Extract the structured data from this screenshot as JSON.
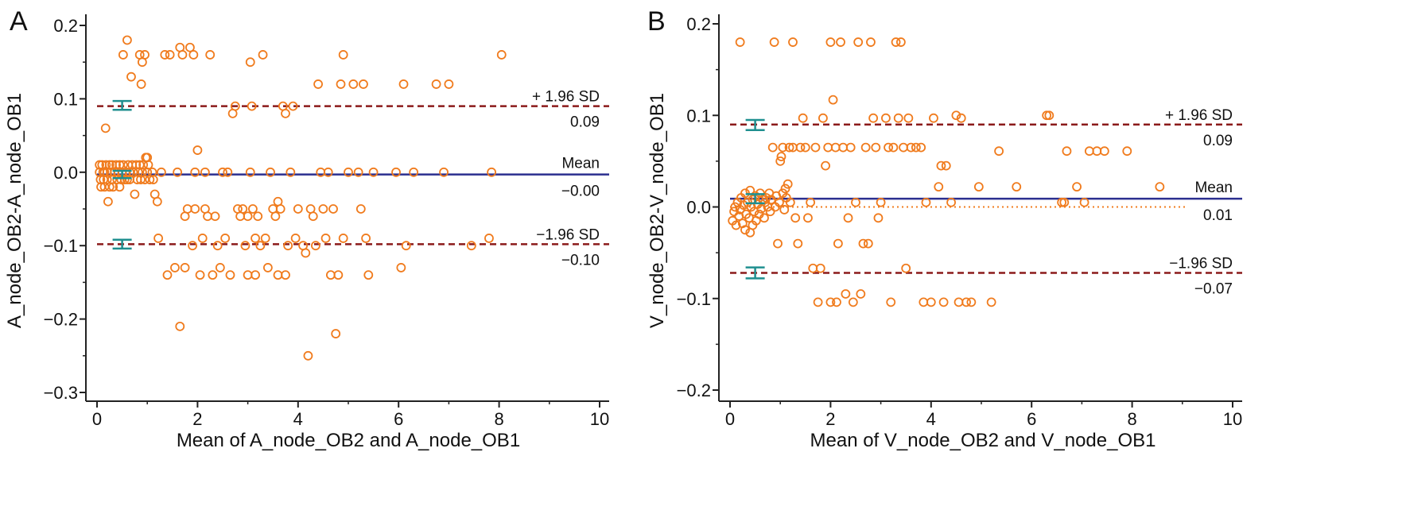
{
  "colors": {
    "axis": "#222222",
    "points": "#f07b1d",
    "mean_line": "#2b2f8f",
    "sd_line": "#8b1a1a",
    "ci_bars": "#1f8f8f",
    "zero_line": "#f07b1d"
  },
  "chart_data": [
    {
      "type": "scatter",
      "panel_label": "A",
      "xlabel": "Mean of A_node_OB2 and A_node_OB1",
      "ylabel": "A_node_OB2-A_node_OB1",
      "xlim": [
        0,
        10
      ],
      "ylim": [
        -0.3,
        0.2
      ],
      "xticks": [
        0,
        2,
        4,
        6,
        8,
        10
      ],
      "yticks": [
        -0.3,
        -0.2,
        -0.1,
        0.0,
        0.1,
        0.2
      ],
      "ytick_labels": [
        "−0.3",
        "−0.2",
        "−0.1",
        "0.0",
        "0.1",
        "0.2"
      ],
      "grid": false,
      "lines": {
        "upper": {
          "value": 0.09,
          "label": "+ 1.96 SD",
          "value_label": "0.09"
        },
        "mean": {
          "value": -0.003,
          "label": "Mean",
          "value_label": "−0.00"
        },
        "lower": {
          "value": -0.098,
          "label": "−1.96 SD",
          "value_label": "−0.10"
        }
      },
      "ci_bars": [
        {
          "x": 0.5,
          "low": 0.085,
          "high": 0.097
        },
        {
          "x": 0.5,
          "low": -0.008,
          "high": 0.002
        },
        {
          "x": 0.5,
          "low": -0.104,
          "high": -0.092
        }
      ],
      "points": [
        [
          0.05,
          0.01
        ],
        [
          0.05,
          0.0
        ],
        [
          0.07,
          -0.01
        ],
        [
          0.08,
          -0.02
        ],
        [
          0.1,
          0.01
        ],
        [
          0.12,
          0.0
        ],
        [
          0.13,
          -0.01
        ],
        [
          0.15,
          0.0
        ],
        [
          0.15,
          -0.02
        ],
        [
          0.17,
          0.06
        ],
        [
          0.18,
          0.01
        ],
        [
          0.2,
          -0.01
        ],
        [
          0.2,
          0.0
        ],
        [
          0.22,
          -0.04
        ],
        [
          0.25,
          0.01
        ],
        [
          0.25,
          -0.02
        ],
        [
          0.27,
          0.0
        ],
        [
          0.3,
          0.01
        ],
        [
          0.3,
          -0.01
        ],
        [
          0.32,
          -0.02
        ],
        [
          0.35,
          0.0
        ],
        [
          0.38,
          0.01
        ],
        [
          0.4,
          -0.01
        ],
        [
          0.42,
          0.0
        ],
        [
          0.45,
          -0.02
        ],
        [
          0.45,
          0.01
        ],
        [
          0.48,
          -0.01
        ],
        [
          0.5,
          0.0
        ],
        [
          0.52,
          0.16
        ],
        [
          0.52,
          0.01
        ],
        [
          0.55,
          -0.01
        ],
        [
          0.58,
          0.0
        ],
        [
          0.6,
          0.18
        ],
        [
          0.6,
          -0.01
        ],
        [
          0.62,
          0.01
        ],
        [
          0.65,
          0.0
        ],
        [
          0.65,
          -0.01
        ],
        [
          0.68,
          0.13
        ],
        [
          0.7,
          0.01
        ],
        [
          0.72,
          0.0
        ],
        [
          0.75,
          -0.03
        ],
        [
          0.78,
          0.01
        ],
        [
          0.8,
          -0.01
        ],
        [
          0.82,
          0.0
        ],
        [
          0.85,
          0.16
        ],
        [
          0.85,
          0.01
        ],
        [
          0.87,
          -0.01
        ],
        [
          0.88,
          0.12
        ],
        [
          0.9,
          0.15
        ],
        [
          0.9,
          0.0
        ],
        [
          0.92,
          0.01
        ],
        [
          0.95,
          0.16
        ],
        [
          0.95,
          -0.01
        ],
        [
          0.97,
          0.02
        ],
        [
          1.0,
          0.0
        ],
        [
          1.0,
          0.02
        ],
        [
          1.02,
          0.01
        ],
        [
          1.05,
          -0.01
        ],
        [
          1.1,
          0.0
        ],
        [
          1.12,
          -0.01
        ],
        [
          1.15,
          -0.03
        ],
        [
          1.2,
          -0.04
        ],
        [
          1.22,
          -0.09
        ],
        [
          1.28,
          0.0
        ],
        [
          1.35,
          0.16
        ],
        [
          1.4,
          -0.14
        ],
        [
          1.45,
          0.16
        ],
        [
          1.55,
          -0.13
        ],
        [
          1.6,
          0.0
        ],
        [
          1.65,
          0.17
        ],
        [
          1.65,
          -0.21
        ],
        [
          1.7,
          0.16
        ],
        [
          1.75,
          -0.06
        ],
        [
          1.75,
          -0.13
        ],
        [
          1.8,
          -0.05
        ],
        [
          1.85,
          0.17
        ],
        [
          1.9,
          -0.1
        ],
        [
          1.92,
          0.16
        ],
        [
          1.95,
          0.0
        ],
        [
          1.95,
          -0.05
        ],
        [
          2.0,
          0.03
        ],
        [
          2.05,
          -0.14
        ],
        [
          2.1,
          -0.09
        ],
        [
          2.15,
          0.0
        ],
        [
          2.15,
          -0.05
        ],
        [
          2.2,
          -0.06
        ],
        [
          2.25,
          0.16
        ],
        [
          2.3,
          -0.14
        ],
        [
          2.35,
          -0.06
        ],
        [
          2.4,
          -0.1
        ],
        [
          2.45,
          -0.13
        ],
        [
          2.5,
          0.0
        ],
        [
          2.55,
          -0.09
        ],
        [
          2.6,
          0.0
        ],
        [
          2.65,
          -0.14
        ],
        [
          2.7,
          0.08
        ],
        [
          2.75,
          0.09
        ],
        [
          2.8,
          -0.05
        ],
        [
          2.85,
          -0.06
        ],
        [
          2.9,
          -0.05
        ],
        [
          2.95,
          -0.1
        ],
        [
          3.0,
          -0.06
        ],
        [
          3.0,
          -0.14
        ],
        [
          3.05,
          0.0
        ],
        [
          3.05,
          0.15
        ],
        [
          3.08,
          0.09
        ],
        [
          3.1,
          -0.05
        ],
        [
          3.15,
          -0.09
        ],
        [
          3.15,
          -0.14
        ],
        [
          3.2,
          -0.06
        ],
        [
          3.25,
          -0.1
        ],
        [
          3.3,
          0.16
        ],
        [
          3.35,
          -0.09
        ],
        [
          3.4,
          -0.13
        ],
        [
          3.45,
          0.0
        ],
        [
          3.5,
          -0.05
        ],
        [
          3.55,
          -0.06
        ],
        [
          3.6,
          -0.04
        ],
        [
          3.6,
          -0.14
        ],
        [
          3.65,
          -0.05
        ],
        [
          3.7,
          0.09
        ],
        [
          3.75,
          0.08
        ],
        [
          3.75,
          -0.14
        ],
        [
          3.8,
          -0.1
        ],
        [
          3.85,
          0.0
        ],
        [
          3.9,
          0.09
        ],
        [
          3.95,
          -0.09
        ],
        [
          4.0,
          -0.05
        ],
        [
          4.1,
          -0.1
        ],
        [
          4.15,
          -0.11
        ],
        [
          4.2,
          -0.25
        ],
        [
          4.25,
          -0.05
        ],
        [
          4.3,
          -0.06
        ],
        [
          4.35,
          -0.1
        ],
        [
          4.4,
          0.12
        ],
        [
          4.45,
          0.0
        ],
        [
          4.5,
          -0.05
        ],
        [
          4.55,
          -0.09
        ],
        [
          4.6,
          0.0
        ],
        [
          4.65,
          -0.14
        ],
        [
          4.7,
          -0.05
        ],
        [
          4.75,
          -0.22
        ],
        [
          4.8,
          -0.14
        ],
        [
          4.85,
          0.12
        ],
        [
          4.9,
          0.16
        ],
        [
          4.9,
          -0.09
        ],
        [
          5.0,
          0.0
        ],
        [
          5.1,
          0.12
        ],
        [
          5.2,
          0.0
        ],
        [
          5.25,
          -0.05
        ],
        [
          5.3,
          0.12
        ],
        [
          5.35,
          -0.09
        ],
        [
          5.4,
          -0.14
        ],
        [
          5.5,
          0.0
        ],
        [
          5.95,
          0.0
        ],
        [
          6.05,
          -0.13
        ],
        [
          6.1,
          0.12
        ],
        [
          6.15,
          -0.1
        ],
        [
          6.3,
          0.0
        ],
        [
          6.75,
          0.12
        ],
        [
          6.9,
          0.0
        ],
        [
          7.0,
          0.12
        ],
        [
          7.45,
          -0.1
        ],
        [
          7.8,
          -0.09
        ],
        [
          7.85,
          0.0
        ],
        [
          8.05,
          0.16
        ]
      ]
    },
    {
      "type": "scatter",
      "panel_label": "B",
      "xlabel": "Mean of V_node_OB2 and V_node_OB1",
      "ylabel": "V_node_OB2-V_node_OB1",
      "xlim": [
        0,
        10
      ],
      "ylim": [
        -0.2,
        0.2
      ],
      "xticks": [
        0,
        2,
        4,
        6,
        8,
        10
      ],
      "yticks": [
        -0.2,
        -0.1,
        0.0,
        0.1,
        0.2
      ],
      "ytick_labels": [
        "−0.2",
        "−0.1",
        "0.0",
        "0.1",
        "0.2"
      ],
      "grid": false,
      "lines": {
        "upper": {
          "value": 0.09,
          "label": "+ 1.96 SD",
          "value_label": "0.09"
        },
        "mean": {
          "value": 0.009,
          "label": "Mean",
          "value_label": "0.01"
        },
        "lower": {
          "value": -0.072,
          "label": "−1.96 SD",
          "value_label": "−0.07"
        }
      },
      "zero_line": {
        "value": 0.0,
        "x_end": 9.1
      },
      "ci_bars": [
        {
          "x": 0.5,
          "low": 0.084,
          "high": 0.095
        },
        {
          "x": 0.5,
          "low": 0.004,
          "high": 0.014
        },
        {
          "x": 0.5,
          "low": -0.078,
          "high": -0.066
        }
      ],
      "points": [
        [
          0.05,
          -0.015
        ],
        [
          0.08,
          -0.005
        ],
        [
          0.1,
          0.0
        ],
        [
          0.12,
          -0.02
        ],
        [
          0.15,
          0.005
        ],
        [
          0.18,
          -0.01
        ],
        [
          0.2,
          0.18
        ],
        [
          0.2,
          -0.003
        ],
        [
          0.22,
          0.01
        ],
        [
          0.25,
          -0.018
        ],
        [
          0.27,
          0.002
        ],
        [
          0.3,
          -0.025
        ],
        [
          0.3,
          0.015
        ],
        [
          0.32,
          -0.008
        ],
        [
          0.35,
          0.005
        ],
        [
          0.38,
          -0.012
        ],
        [
          0.4,
          -0.028
        ],
        [
          0.4,
          0.018
        ],
        [
          0.42,
          0.0
        ],
        [
          0.45,
          -0.02
        ],
        [
          0.45,
          0.008
        ],
        [
          0.48,
          -0.005
        ],
        [
          0.5,
          0.012
        ],
        [
          0.52,
          -0.015
        ],
        [
          0.55,
          0.003
        ],
        [
          0.58,
          -0.008
        ],
        [
          0.6,
          0.015
        ],
        [
          0.62,
          -0.002
        ],
        [
          0.65,
          0.008
        ],
        [
          0.68,
          -0.012
        ],
        [
          0.7,
          0.005
        ],
        [
          0.72,
          0.01
        ],
        [
          0.75,
          0.0
        ],
        [
          0.78,
          0.015
        ],
        [
          0.8,
          -0.005
        ],
        [
          0.82,
          0.008
        ],
        [
          0.85,
          0.065
        ],
        [
          0.88,
          0.18
        ],
        [
          0.9,
          0.0
        ],
        [
          0.92,
          0.012
        ],
        [
          0.95,
          -0.04
        ],
        [
          0.98,
          0.005
        ],
        [
          1.0,
          0.05
        ],
        [
          1.02,
          0.055
        ],
        [
          1.05,
          0.015
        ],
        [
          1.05,
          0.065
        ],
        [
          1.08,
          -0.003
        ],
        [
          1.1,
          0.02
        ],
        [
          1.12,
          0.01
        ],
        [
          1.15,
          0.025
        ],
        [
          1.18,
          0.065
        ],
        [
          1.2,
          0.005
        ],
        [
          1.25,
          0.065
        ],
        [
          1.25,
          0.18
        ],
        [
          1.3,
          -0.012
        ],
        [
          1.35,
          -0.04
        ],
        [
          1.4,
          0.065
        ],
        [
          1.45,
          0.097
        ],
        [
          1.5,
          0.065
        ],
        [
          1.55,
          -0.012
        ],
        [
          1.6,
          0.005
        ],
        [
          1.65,
          -0.067
        ],
        [
          1.7,
          0.065
        ],
        [
          1.75,
          -0.104
        ],
        [
          1.8,
          -0.067
        ],
        [
          1.85,
          0.097
        ],
        [
          1.9,
          0.045
        ],
        [
          1.95,
          0.065
        ],
        [
          2.0,
          0.18
        ],
        [
          2.0,
          -0.104
        ],
        [
          2.05,
          0.117
        ],
        [
          2.1,
          0.065
        ],
        [
          2.12,
          -0.104
        ],
        [
          2.15,
          -0.04
        ],
        [
          2.2,
          0.18
        ],
        [
          2.25,
          0.065
        ],
        [
          2.3,
          -0.095
        ],
        [
          2.35,
          -0.012
        ],
        [
          2.4,
          0.065
        ],
        [
          2.45,
          -0.104
        ],
        [
          2.5,
          0.005
        ],
        [
          2.55,
          0.18
        ],
        [
          2.6,
          -0.095
        ],
        [
          2.65,
          -0.04
        ],
        [
          2.7,
          0.065
        ],
        [
          2.75,
          -0.04
        ],
        [
          2.8,
          0.18
        ],
        [
          2.85,
          0.097
        ],
        [
          2.9,
          0.065
        ],
        [
          2.95,
          -0.012
        ],
        [
          3.0,
          0.005
        ],
        [
          3.1,
          0.097
        ],
        [
          3.15,
          0.065
        ],
        [
          3.2,
          -0.104
        ],
        [
          3.25,
          0.065
        ],
        [
          3.3,
          0.18
        ],
        [
          3.35,
          0.097
        ],
        [
          3.4,
          0.18
        ],
        [
          3.45,
          0.065
        ],
        [
          3.5,
          -0.067
        ],
        [
          3.55,
          0.097
        ],
        [
          3.6,
          0.065
        ],
        [
          3.7,
          0.065
        ],
        [
          3.8,
          0.065
        ],
        [
          3.85,
          -0.104
        ],
        [
          3.9,
          0.005
        ],
        [
          4.0,
          -0.104
        ],
        [
          4.05,
          0.097
        ],
        [
          4.15,
          0.022
        ],
        [
          4.2,
          0.045
        ],
        [
          4.25,
          -0.104
        ],
        [
          4.3,
          0.045
        ],
        [
          4.4,
          0.005
        ],
        [
          4.5,
          0.1
        ],
        [
          4.55,
          -0.104
        ],
        [
          4.6,
          0.097
        ],
        [
          4.7,
          -0.104
        ],
        [
          4.8,
          -0.104
        ],
        [
          4.95,
          0.022
        ],
        [
          5.2,
          -0.104
        ],
        [
          5.35,
          0.061
        ],
        [
          5.7,
          0.022
        ],
        [
          6.3,
          0.1
        ],
        [
          6.35,
          0.1
        ],
        [
          6.6,
          0.005
        ],
        [
          6.65,
          0.005
        ],
        [
          6.7,
          0.061
        ],
        [
          6.9,
          0.022
        ],
        [
          7.05,
          0.005
        ],
        [
          7.15,
          0.061
        ],
        [
          7.3,
          0.061
        ],
        [
          7.45,
          0.061
        ],
        [
          7.9,
          0.061
        ],
        [
          8.55,
          0.022
        ]
      ]
    }
  ]
}
